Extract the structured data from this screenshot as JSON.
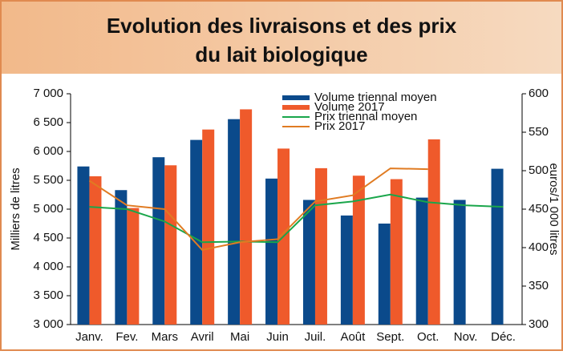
{
  "chart_data": {
    "type": "bar-line",
    "title": "Evolution des livraisons et des prix",
    "subtitle": "du lait biologique",
    "categories": [
      "Janv.",
      "Fev.",
      "Mars",
      "Avril",
      "Mai",
      "Juin",
      "Juil.",
      "Août",
      "Sept.",
      "Oct.",
      "Nov.",
      "Déc."
    ],
    "y_label": "Milliers de litres",
    "y2_label": "euros/1 000 litres",
    "ylim": [
      3000,
      7000
    ],
    "yticks": [
      {
        "value": 3000,
        "label": "3 000"
      },
      {
        "value": 3500,
        "label": "3 500"
      },
      {
        "value": 4000,
        "label": "4 000"
      },
      {
        "value": 4500,
        "label": "4 500"
      },
      {
        "value": 5000,
        "label": "5 000"
      },
      {
        "value": 5500,
        "label": "5 500"
      },
      {
        "value": 6000,
        "label": "6 000"
      },
      {
        "value": 6500,
        "label": "6 500"
      },
      {
        "value": 7000,
        "label": "7 000"
      }
    ],
    "y2lim": [
      300,
      600
    ],
    "y2ticks": [
      300,
      350,
      400,
      450,
      500,
      550,
      600
    ],
    "series": [
      {
        "name": "Volume triennal moyen",
        "kind": "bar",
        "color": "#0b4a8b",
        "values": [
          5740,
          5330,
          5900,
          6200,
          6560,
          5530,
          5160,
          4890,
          4750,
          5200,
          5160,
          5700
        ]
      },
      {
        "name": "Volume 2017",
        "kind": "bar",
        "color": "#ef5a2b",
        "values": [
          5570,
          5020,
          5760,
          6380,
          6730,
          6050,
          5710,
          5580,
          5520,
          6210,
          null,
          null
        ]
      },
      {
        "name": "Prix triennal moyen",
        "kind": "line",
        "axis": "y2",
        "color": "#1aa64b",
        "values": [
          453,
          450,
          434,
          407,
          408,
          407,
          455,
          460,
          469,
          459,
          455,
          453
        ]
      },
      {
        "name": "Prix 2017",
        "kind": "line",
        "axis": "y2",
        "color": "#e07b22",
        "values": [
          487,
          455,
          450,
          397,
          407,
          411,
          460,
          468,
          503,
          502,
          null,
          null
        ]
      }
    ]
  }
}
